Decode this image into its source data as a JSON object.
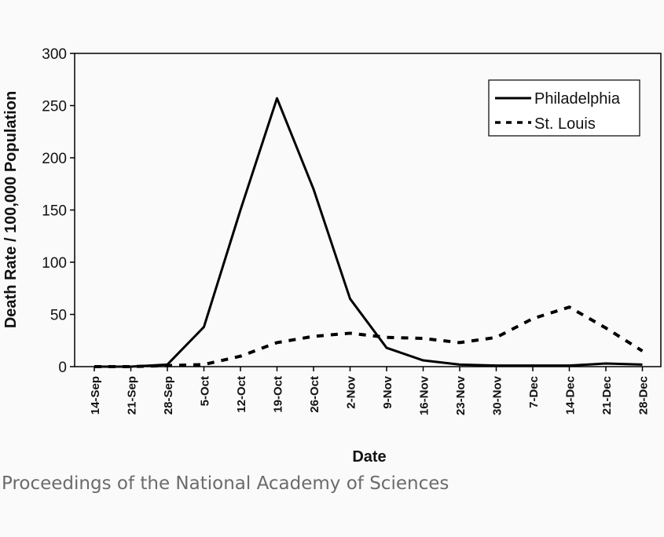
{
  "caption": "Proceedings of the National Academy of Sciences",
  "chart_data": {
    "type": "line",
    "title": "",
    "xlabel": "Date",
    "ylabel": "Death Rate / 100,000 Population",
    "ylim": [
      0,
      300
    ],
    "yticks": [
      "0",
      "50",
      "100",
      "150",
      "200",
      "250",
      "300"
    ],
    "categories": [
      "14-Sep",
      "21-Sep",
      "28-Sep",
      "5-Oct",
      "12-Oct",
      "19-Oct",
      "26-Oct",
      "2-Nov",
      "9-Nov",
      "16-Nov",
      "23-Nov",
      "30-Nov",
      "7-Dec",
      "14-Dec",
      "21-Dec",
      "28-Dec"
    ],
    "grid": false,
    "legend_position": "top-right",
    "series": [
      {
        "name": "Philadelphia",
        "style": "solid",
        "color": "#000000",
        "values": [
          0,
          0,
          2,
          38,
          150,
          257,
          170,
          65,
          18,
          6,
          2,
          1,
          1,
          1,
          3,
          2
        ]
      },
      {
        "name": "St. Louis",
        "style": "dashed",
        "color": "#000000",
        "values": [
          0,
          0,
          1,
          2,
          10,
          23,
          29,
          32,
          28,
          27,
          23,
          28,
          46,
          57,
          37,
          15
        ]
      }
    ]
  }
}
